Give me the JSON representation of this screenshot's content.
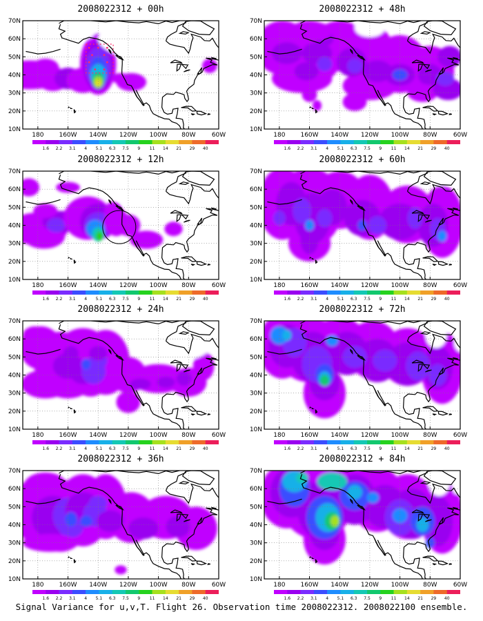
{
  "caption": "Signal Variance for u,v,T. Flight 26. Observation time 2008022312. 2008022100 ensemble.",
  "lat_labels": [
    "10N",
    "20N",
    "30N",
    "40N",
    "50N",
    "60N",
    "70N"
  ],
  "lon_labels": [
    "180",
    "160W",
    "140W",
    "120W",
    "100W",
    "80W",
    "60W"
  ],
  "colorbar": {
    "labels": [
      "1.6",
      "2.2",
      "3.1",
      "4",
      "5.1",
      "6.3",
      "7.5",
      "9",
      "11",
      "14",
      "21",
      "29",
      "40"
    ],
    "colors": [
      "#c000ff",
      "#9a00f0",
      "#7a2cff",
      "#3b4dff",
      "#1e8cff",
      "#18b0e8",
      "#14c8b4",
      "#12c86e",
      "#26d21e",
      "#a6e01e",
      "#e6dc32",
      "#f0a028",
      "#ee6a2a",
      "#ec1e5a"
    ]
  },
  "panels": [
    {
      "id": "00h",
      "title": "2008022312 + 00h"
    },
    {
      "id": "48h",
      "title": "2008022312 + 48h"
    },
    {
      "id": "12h",
      "title": "2008022312 + 12h"
    },
    {
      "id": "60h",
      "title": "2008022312 + 60h"
    },
    {
      "id": "24h",
      "title": "2008022312 + 24h"
    },
    {
      "id": "72h",
      "title": "2008022312 + 72h"
    },
    {
      "id": "36h",
      "title": "2008022312 + 36h"
    },
    {
      "id": "84h",
      "title": "2008022312 + 84h"
    }
  ]
}
